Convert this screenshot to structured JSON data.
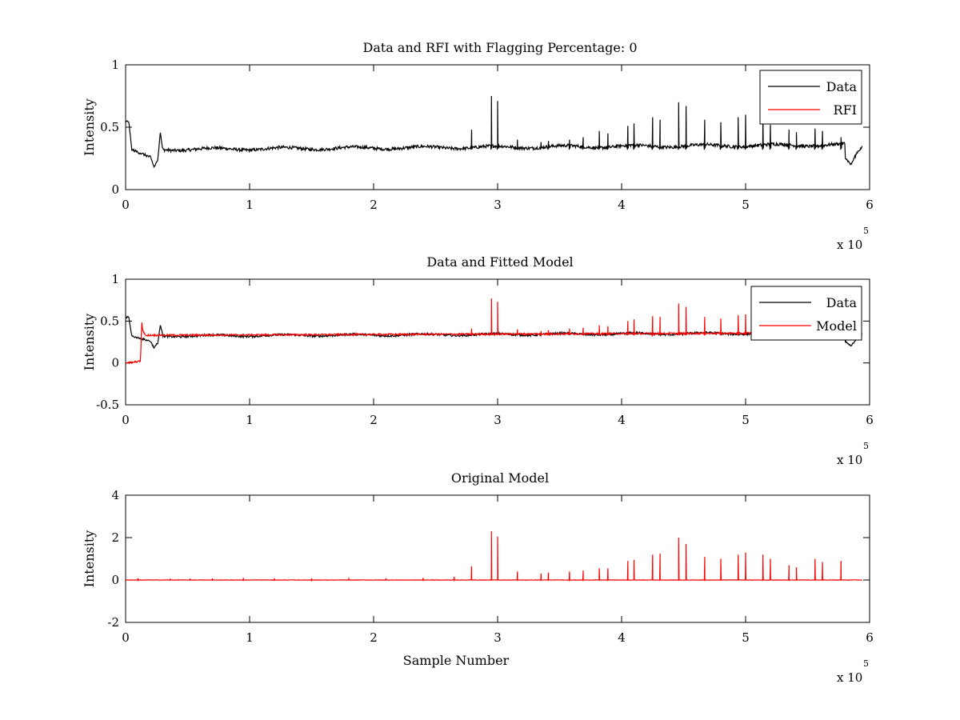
{
  "chart_data": [
    {
      "type": "line",
      "title": "Data and RFI with Flagging Percentage: 0",
      "xlabel": "",
      "ylabel": "Intensity",
      "xlim": [
        0,
        600000
      ],
      "ylim": [
        0,
        1
      ],
      "xticks": [
        0,
        1,
        2,
        3,
        4,
        5,
        6
      ],
      "yticks": [
        0,
        0.5,
        1
      ],
      "xexp": "x 10",
      "xexp_pow": "5",
      "legend_position": "top-right",
      "series": [
        {
          "name": "Data",
          "color": "#000000",
          "kind": "data",
          "baseline": 0.32,
          "x": [
            0,
            2500,
            5000,
            20000,
            23000,
            26000,
            28000,
            30000,
            580000,
            585000,
            590000,
            595000
          ],
          "values": [
            0.54,
            0.55,
            0.32,
            0.26,
            0.18,
            0.24,
            0.45,
            0.33,
            0.26,
            0.2,
            0.3,
            0.35
          ]
        },
        {
          "name": "RFI",
          "color": "#ff0000",
          "kind": "none",
          "x": [],
          "values": []
        }
      ],
      "spikes": [
        {
          "x": 279000,
          "y": 0.48
        },
        {
          "x": 295000,
          "y": 0.75
        },
        {
          "x": 300000,
          "y": 0.71
        },
        {
          "x": 316000,
          "y": 0.4
        },
        {
          "x": 335000,
          "y": 0.38
        },
        {
          "x": 341000,
          "y": 0.39
        },
        {
          "x": 358000,
          "y": 0.4
        },
        {
          "x": 369000,
          "y": 0.42
        },
        {
          "x": 382000,
          "y": 0.47
        },
        {
          "x": 389000,
          "y": 0.45
        },
        {
          "x": 405000,
          "y": 0.51
        },
        {
          "x": 410000,
          "y": 0.53
        },
        {
          "x": 425000,
          "y": 0.58
        },
        {
          "x": 431000,
          "y": 0.56
        },
        {
          "x": 446000,
          "y": 0.7
        },
        {
          "x": 452000,
          "y": 0.67
        },
        {
          "x": 467000,
          "y": 0.56
        },
        {
          "x": 480000,
          "y": 0.54
        },
        {
          "x": 494000,
          "y": 0.58
        },
        {
          "x": 500000,
          "y": 0.6
        },
        {
          "x": 514000,
          "y": 0.59
        },
        {
          "x": 520000,
          "y": 0.52
        },
        {
          "x": 535000,
          "y": 0.48
        },
        {
          "x": 541000,
          "y": 0.46
        },
        {
          "x": 556000,
          "y": 0.49
        },
        {
          "x": 562000,
          "y": 0.47
        },
        {
          "x": 577000,
          "y": 0.42
        }
      ]
    },
    {
      "type": "line",
      "title": "Data and Fitted Model",
      "xlabel": "",
      "ylabel": "Intensity",
      "xlim": [
        0,
        600000
      ],
      "ylim": [
        -0.5,
        1
      ],
      "xticks": [
        0,
        1,
        2,
        3,
        4,
        5,
        6
      ],
      "yticks": [
        -0.5,
        0,
        0.5,
        1
      ],
      "xexp": "x 10",
      "xexp_pow": "5",
      "legend_position": "top-right",
      "series": [
        {
          "name": "Data",
          "color": "#000000",
          "kind": "data",
          "baseline": 0.32,
          "x": [
            0,
            2500,
            5000,
            20000,
            23000,
            26000,
            28000,
            30000,
            580000,
            585000,
            590000,
            595000
          ],
          "values": [
            0.54,
            0.55,
            0.32,
            0.26,
            0.18,
            0.24,
            0.45,
            0.33,
            0.26,
            0.2,
            0.3,
            0.35
          ]
        },
        {
          "name": "Model",
          "color": "#ff0000",
          "kind": "model",
          "baseline": 0.33,
          "x": [
            0,
            12000,
            13000,
            14000,
            16000,
            18000
          ],
          "values": [
            0.0,
            0.02,
            0.5,
            0.38,
            0.33,
            0.33
          ]
        }
      ],
      "spikes": [
        {
          "x": 279000,
          "y": 0.41
        },
        {
          "x": 295000,
          "y": 0.77
        },
        {
          "x": 300000,
          "y": 0.73
        },
        {
          "x": 316000,
          "y": 0.4
        },
        {
          "x": 335000,
          "y": 0.38
        },
        {
          "x": 341000,
          "y": 0.39
        },
        {
          "x": 358000,
          "y": 0.41
        },
        {
          "x": 369000,
          "y": 0.42
        },
        {
          "x": 382000,
          "y": 0.45
        },
        {
          "x": 389000,
          "y": 0.44
        },
        {
          "x": 405000,
          "y": 0.5
        },
        {
          "x": 410000,
          "y": 0.52
        },
        {
          "x": 425000,
          "y": 0.56
        },
        {
          "x": 431000,
          "y": 0.55
        },
        {
          "x": 446000,
          "y": 0.71
        },
        {
          "x": 452000,
          "y": 0.67
        },
        {
          "x": 467000,
          "y": 0.55
        },
        {
          "x": 480000,
          "y": 0.53
        },
        {
          "x": 494000,
          "y": 0.57
        },
        {
          "x": 500000,
          "y": 0.58
        },
        {
          "x": 514000,
          "y": 0.52
        },
        {
          "x": 520000,
          "y": 0.48
        },
        {
          "x": 535000,
          "y": 0.44
        },
        {
          "x": 541000,
          "y": 0.42
        },
        {
          "x": 556000,
          "y": 0.45
        },
        {
          "x": 562000,
          "y": 0.43
        },
        {
          "x": 577000,
          "y": 0.4
        }
      ]
    },
    {
      "type": "line",
      "title": "Original Model",
      "xlabel": "Sample Number",
      "ylabel": "Intensity",
      "xlim": [
        0,
        600000
      ],
      "ylim": [
        -2,
        4
      ],
      "xticks": [
        0,
        1,
        2,
        3,
        4,
        5,
        6
      ],
      "yticks": [
        -2,
        0,
        2,
        4
      ],
      "xexp": "x 10",
      "xexp_pow": "5",
      "legend_position": "none",
      "series": [
        {
          "name": "",
          "color": "#ff0000",
          "kind": "model",
          "baseline": 0.0,
          "x": [],
          "values": []
        }
      ],
      "spikes": [
        {
          "x": 10000,
          "y": 0.08
        },
        {
          "x": 36000,
          "y": 0.06
        },
        {
          "x": 52000,
          "y": 0.06
        },
        {
          "x": 70000,
          "y": 0.07
        },
        {
          "x": 95000,
          "y": 0.1
        },
        {
          "x": 120000,
          "y": 0.08
        },
        {
          "x": 150000,
          "y": 0.07
        },
        {
          "x": 180000,
          "y": 0.06
        },
        {
          "x": 210000,
          "y": 0.08
        },
        {
          "x": 240000,
          "y": 0.1
        },
        {
          "x": 265000,
          "y": 0.15
        },
        {
          "x": 279000,
          "y": 0.65
        },
        {
          "x": 295000,
          "y": 2.3
        },
        {
          "x": 300000,
          "y": 2.05
        },
        {
          "x": 316000,
          "y": 0.4
        },
        {
          "x": 335000,
          "y": 0.3
        },
        {
          "x": 341000,
          "y": 0.35
        },
        {
          "x": 358000,
          "y": 0.4
        },
        {
          "x": 369000,
          "y": 0.45
        },
        {
          "x": 382000,
          "y": 0.55
        },
        {
          "x": 389000,
          "y": 0.55
        },
        {
          "x": 405000,
          "y": 0.9
        },
        {
          "x": 410000,
          "y": 0.95
        },
        {
          "x": 425000,
          "y": 1.2
        },
        {
          "x": 431000,
          "y": 1.25
        },
        {
          "x": 446000,
          "y": 2.0
        },
        {
          "x": 452000,
          "y": 1.7
        },
        {
          "x": 467000,
          "y": 1.1
        },
        {
          "x": 480000,
          "y": 1.0
        },
        {
          "x": 494000,
          "y": 1.2
        },
        {
          "x": 500000,
          "y": 1.3
        },
        {
          "x": 514000,
          "y": 1.2
        },
        {
          "x": 520000,
          "y": 1.0
        },
        {
          "x": 535000,
          "y": 0.7
        },
        {
          "x": 541000,
          "y": 0.6
        },
        {
          "x": 556000,
          "y": 1.0
        },
        {
          "x": 562000,
          "y": 0.85
        },
        {
          "x": 577000,
          "y": 0.9
        }
      ]
    }
  ]
}
